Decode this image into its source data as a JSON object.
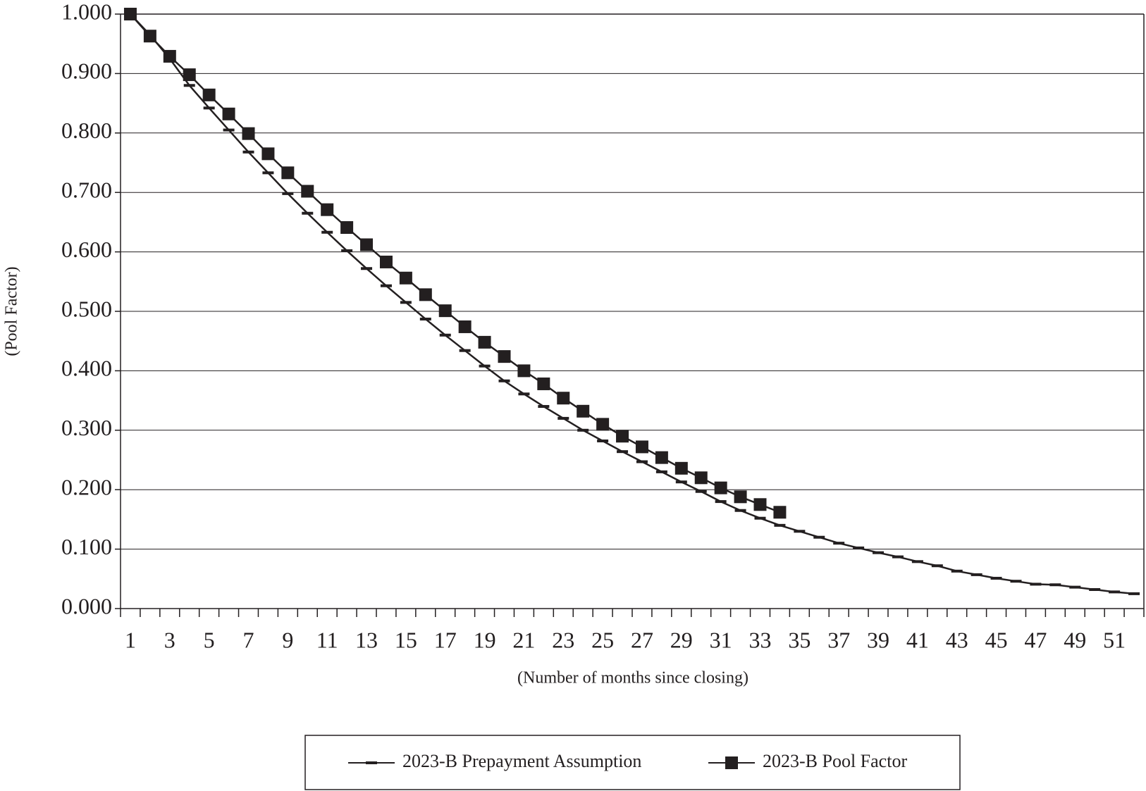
{
  "chart_data": {
    "type": "line",
    "y_label": "(Pool Factor)",
    "x_label": "(Number of months since closing)",
    "categories": [
      1,
      null,
      3,
      null,
      5,
      null,
      7,
      null,
      9,
      null,
      11,
      null,
      13,
      null,
      15,
      null,
      17,
      null,
      19,
      null,
      21,
      null,
      23,
      null,
      25,
      null,
      27,
      null,
      29,
      null,
      31,
      null,
      33,
      null,
      35,
      null,
      37,
      null,
      39,
      null,
      41,
      null,
      43,
      null,
      45,
      null,
      47,
      null,
      49,
      null,
      51,
      null
    ],
    "series": [
      {
        "name": "2023-B Prepayment Assumption",
        "color": "#231f20",
        "marker": "dash",
        "values": [
          1.0,
          0.965,
          0.925,
          0.88,
          0.842,
          0.805,
          0.768,
          0.733,
          0.698,
          0.665,
          0.633,
          0.602,
          0.572,
          0.543,
          0.515,
          0.487,
          0.46,
          0.434,
          0.408,
          0.383,
          0.361,
          0.34,
          0.32,
          0.3,
          0.282,
          0.264,
          0.247,
          0.23,
          0.213,
          0.197,
          0.18,
          0.165,
          0.152,
          0.14,
          0.13,
          0.12,
          0.11,
          0.102,
          0.094,
          0.087,
          0.079,
          0.072,
          0.063,
          0.057,
          0.051,
          0.046,
          0.041,
          0.04,
          0.036,
          0.032,
          0.028,
          0.025
        ]
      },
      {
        "name": "2023-B Pool Factor",
        "color": "#231f20",
        "marker": "square",
        "values": [
          1.0,
          0.963,
          0.929,
          0.898,
          0.864,
          0.832,
          0.799,
          0.765,
          0.733,
          0.702,
          0.671,
          0.641,
          0.612,
          0.583,
          0.556,
          0.528,
          0.501,
          0.474,
          0.448,
          0.424,
          0.4,
          0.378,
          0.354,
          0.332,
          0.31,
          0.29,
          0.272,
          0.254,
          0.236,
          0.22,
          0.203,
          0.188,
          0.175,
          0.162,
          null,
          null,
          null,
          null,
          null,
          null,
          null,
          null,
          null,
          null,
          null,
          null,
          null,
          null,
          null,
          null,
          null,
          null
        ]
      }
    ],
    "ylim": [
      0,
      1
    ],
    "yticks": [
      {
        "value": 0,
        "label": "0.000"
      },
      {
        "value": 0.1,
        "label": "0.100"
      },
      {
        "value": 0.2,
        "label": "0.200"
      },
      {
        "value": 0.3,
        "label": "0.300"
      },
      {
        "value": 0.4,
        "label": "0.400"
      },
      {
        "value": 0.5,
        "label": "0.500"
      },
      {
        "value": 0.6,
        "label": "0.600"
      },
      {
        "value": 0.7,
        "label": "0.700"
      },
      {
        "value": 0.8,
        "label": "0.800"
      },
      {
        "value": 0.9,
        "label": "0.900"
      },
      {
        "value": 1,
        "label": "1.000"
      }
    ],
    "grid": true,
    "legend": "bottom"
  }
}
